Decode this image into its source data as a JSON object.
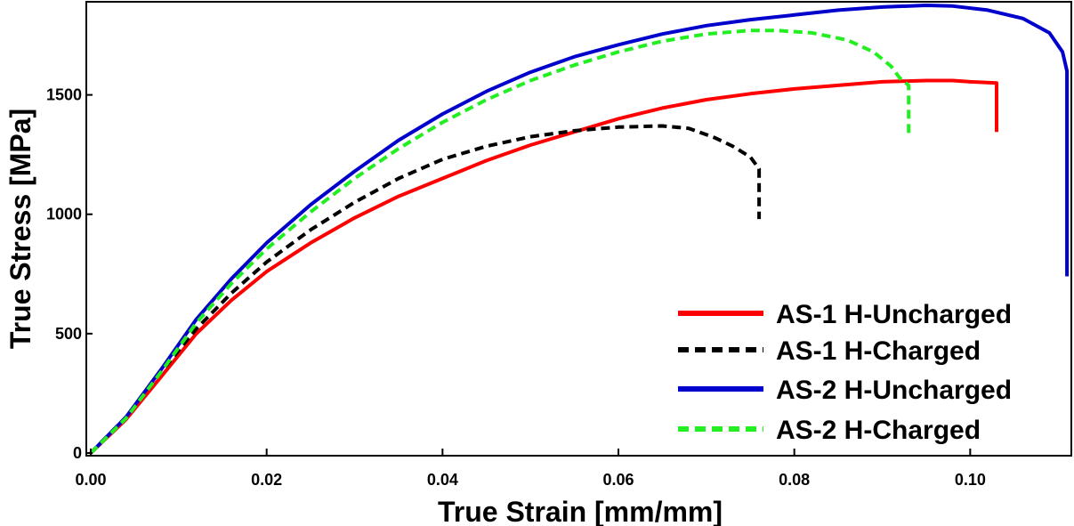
{
  "chart_data": {
    "type": "line",
    "title": "",
    "xlabel": "True Strain [mm/mm]",
    "ylabel": "True Stress [MPa]",
    "xlim": [
      0,
      0.1115
    ],
    "ylim": [
      0,
      1890
    ],
    "x_ticks": [
      {
        "value": 0.0,
        "label": "0.00"
      },
      {
        "value": 0.02,
        "label": "0.02"
      },
      {
        "value": 0.04,
        "label": "0.04"
      },
      {
        "value": 0.06,
        "label": "0.06"
      },
      {
        "value": 0.08,
        "label": "0.08"
      },
      {
        "value": 0.1,
        "label": "0.10"
      }
    ],
    "y_ticks": [
      {
        "value": 0,
        "label": "0"
      },
      {
        "value": 500,
        "label": "500"
      },
      {
        "value": 1000,
        "label": "1000"
      },
      {
        "value": 1500,
        "label": "1500"
      }
    ],
    "grid": false,
    "legend_position": "bottom-right",
    "series": [
      {
        "name": "AS-1 H-Uncharged",
        "color": "#ff0000",
        "dash": "solid",
        "points": [
          [
            0,
            0
          ],
          [
            0.004,
            140
          ],
          [
            0.008,
            320
          ],
          [
            0.012,
            500
          ],
          [
            0.016,
            640
          ],
          [
            0.02,
            760
          ],
          [
            0.025,
            880
          ],
          [
            0.03,
            985
          ],
          [
            0.035,
            1075
          ],
          [
            0.04,
            1150
          ],
          [
            0.045,
            1225
          ],
          [
            0.05,
            1290
          ],
          [
            0.055,
            1345
          ],
          [
            0.06,
            1400
          ],
          [
            0.065,
            1445
          ],
          [
            0.07,
            1480
          ],
          [
            0.075,
            1505
          ],
          [
            0.08,
            1525
          ],
          [
            0.085,
            1540
          ],
          [
            0.09,
            1555
          ],
          [
            0.095,
            1560
          ],
          [
            0.098,
            1560
          ],
          [
            0.1,
            1555
          ],
          [
            0.103,
            1550
          ],
          [
            0.103,
            1345
          ]
        ]
      },
      {
        "name": "AS-1 H-Charged",
        "color": "#000000",
        "dash": "dashed",
        "points": [
          [
            0,
            0
          ],
          [
            0.004,
            150
          ],
          [
            0.008,
            340
          ],
          [
            0.012,
            520
          ],
          [
            0.016,
            670
          ],
          [
            0.02,
            800
          ],
          [
            0.025,
            935
          ],
          [
            0.03,
            1050
          ],
          [
            0.035,
            1150
          ],
          [
            0.04,
            1230
          ],
          [
            0.045,
            1285
          ],
          [
            0.05,
            1325
          ],
          [
            0.055,
            1350
          ],
          [
            0.06,
            1365
          ],
          [
            0.065,
            1370
          ],
          [
            0.068,
            1360
          ],
          [
            0.071,
            1320
          ],
          [
            0.073,
            1285
          ],
          [
            0.075,
            1240
          ],
          [
            0.076,
            1190
          ],
          [
            0.076,
            980
          ]
        ]
      },
      {
        "name": "AS-2 H-Uncharged",
        "color": "#0000cc",
        "dash": "solid",
        "points": [
          [
            0,
            0
          ],
          [
            0.004,
            150
          ],
          [
            0.008,
            350
          ],
          [
            0.012,
            560
          ],
          [
            0.016,
            730
          ],
          [
            0.02,
            880
          ],
          [
            0.025,
            1040
          ],
          [
            0.03,
            1180
          ],
          [
            0.035,
            1310
          ],
          [
            0.04,
            1420
          ],
          [
            0.045,
            1515
          ],
          [
            0.05,
            1595
          ],
          [
            0.055,
            1660
          ],
          [
            0.06,
            1710
          ],
          [
            0.065,
            1755
          ],
          [
            0.07,
            1790
          ],
          [
            0.075,
            1815
          ],
          [
            0.08,
            1835
          ],
          [
            0.085,
            1855
          ],
          [
            0.09,
            1868
          ],
          [
            0.095,
            1875
          ],
          [
            0.098,
            1872
          ],
          [
            0.102,
            1855
          ],
          [
            0.106,
            1820
          ],
          [
            0.109,
            1760
          ],
          [
            0.1105,
            1680
          ],
          [
            0.111,
            1600
          ],
          [
            0.111,
            740
          ]
        ]
      },
      {
        "name": "AS-2 H-Charged",
        "color": "#22ee22",
        "dash": "dashed",
        "points": [
          [
            0,
            0
          ],
          [
            0.004,
            145
          ],
          [
            0.008,
            340
          ],
          [
            0.012,
            545
          ],
          [
            0.016,
            710
          ],
          [
            0.02,
            855
          ],
          [
            0.025,
            1010
          ],
          [
            0.03,
            1150
          ],
          [
            0.035,
            1275
          ],
          [
            0.04,
            1385
          ],
          [
            0.045,
            1480
          ],
          [
            0.05,
            1560
          ],
          [
            0.055,
            1625
          ],
          [
            0.06,
            1680
          ],
          [
            0.065,
            1725
          ],
          [
            0.07,
            1755
          ],
          [
            0.075,
            1770
          ],
          [
            0.078,
            1770
          ],
          [
            0.082,
            1760
          ],
          [
            0.086,
            1730
          ],
          [
            0.089,
            1680
          ],
          [
            0.091,
            1620
          ],
          [
            0.092,
            1570
          ],
          [
            0.093,
            1540
          ],
          [
            0.093,
            1320
          ]
        ]
      }
    ]
  }
}
